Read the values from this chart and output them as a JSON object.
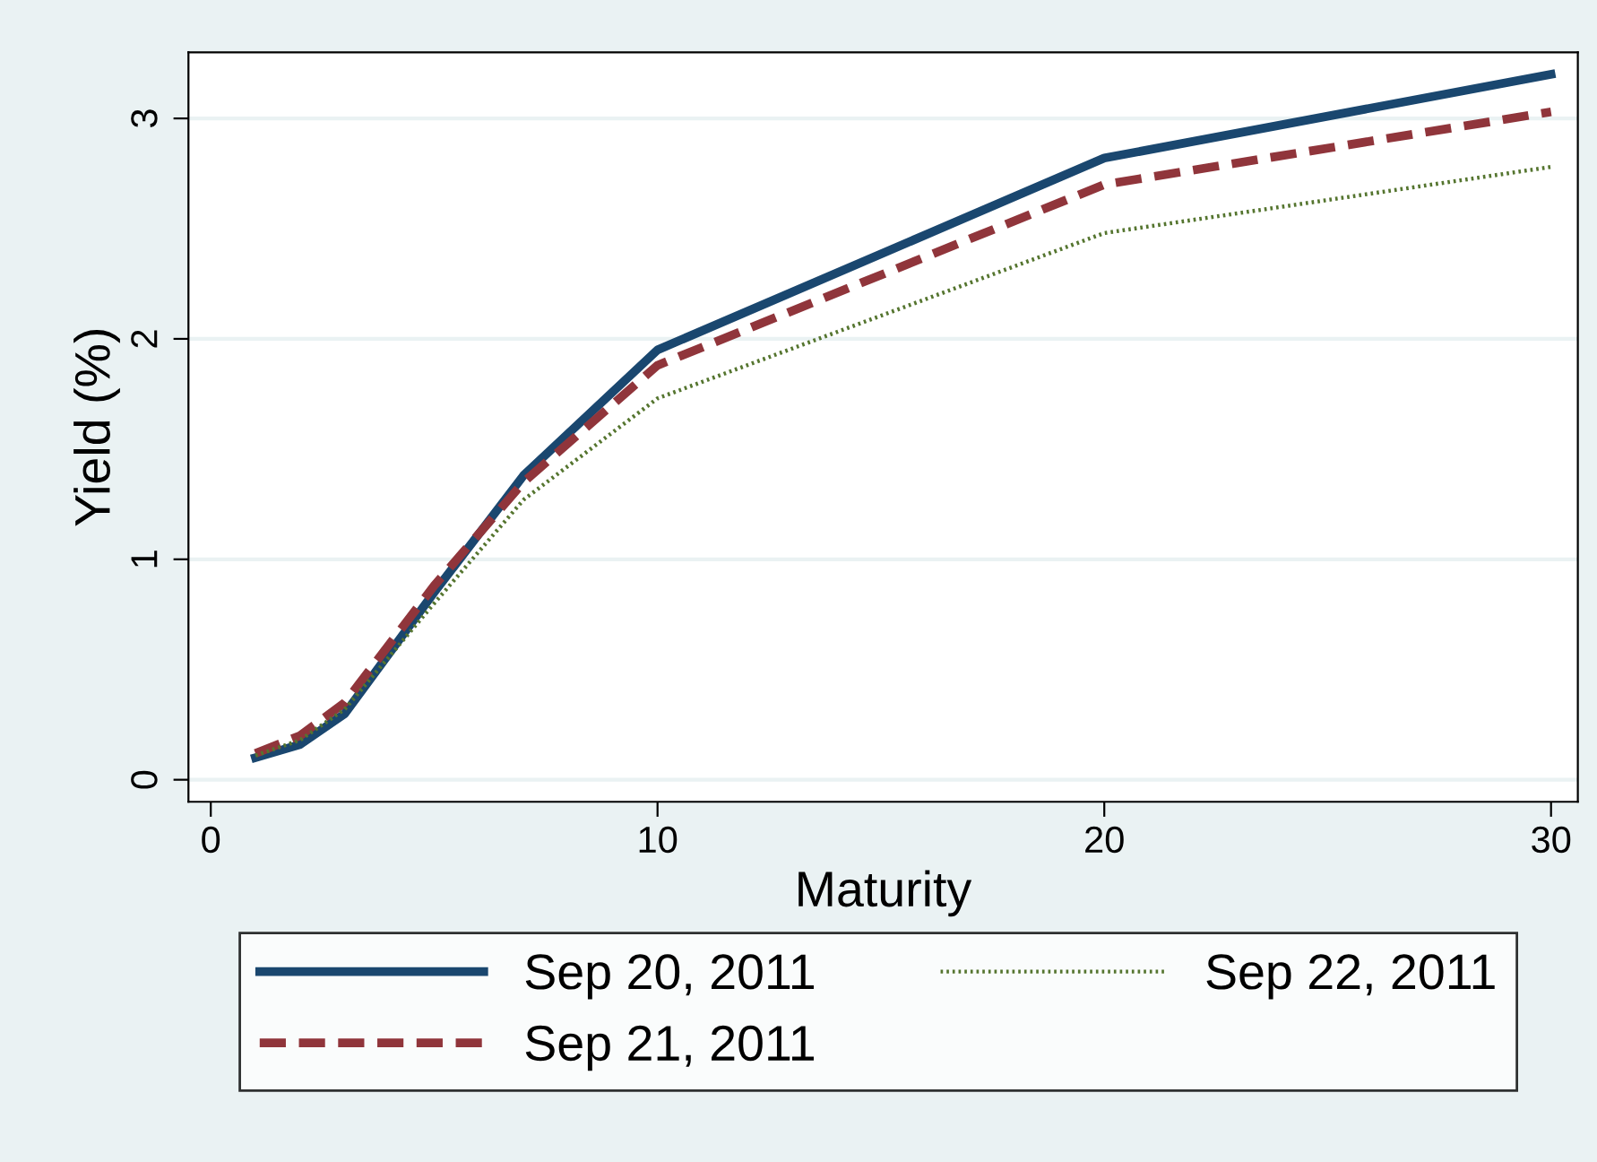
{
  "chart_data": {
    "type": "line",
    "xlabel": "Maturity",
    "ylabel": "Yield (%)",
    "x": [
      1,
      2,
      3,
      5,
      7,
      10,
      20,
      30
    ],
    "series": [
      {
        "name": "Sep 20, 2011",
        "color": "#1a476f",
        "line_style": "solid",
        "values": [
          0.1,
          0.16,
          0.3,
          0.85,
          1.38,
          1.95,
          2.82,
          3.2
        ]
      },
      {
        "name": "Sep 21, 2011",
        "color": "#90353b",
        "line_style": "dashed",
        "values": [
          0.12,
          0.2,
          0.35,
          0.88,
          1.35,
          1.88,
          2.7,
          3.03
        ]
      },
      {
        "name": "Sep 22, 2011",
        "color": "#55752f",
        "line_style": "dotted",
        "values": [
          0.11,
          0.18,
          0.32,
          0.8,
          1.27,
          1.73,
          2.48,
          2.78
        ]
      }
    ],
    "xlim": [
      -0.5,
      30.6
    ],
    "xticks": [
      0,
      10,
      20,
      30
    ],
    "ylim": [
      -0.1,
      3.3
    ],
    "yticks": [
      0,
      1,
      2,
      3
    ],
    "grid": "y",
    "legend": "bottom",
    "marker": "none"
  }
}
